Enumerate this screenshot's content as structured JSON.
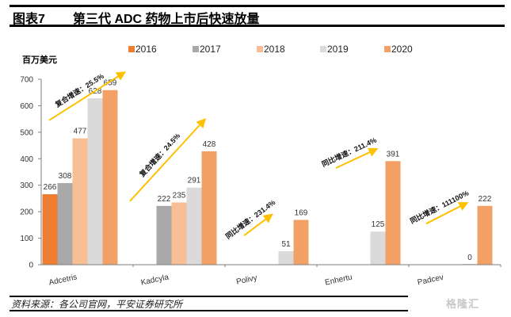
{
  "header": {
    "figure_number": "图表7",
    "title": "第三代 ADC 药物上市后快速放量"
  },
  "footer": {
    "source": "资料来源：各公司官网，平安证券研究所",
    "watermark": "格隆汇"
  },
  "chart_data": {
    "type": "bar",
    "title": "第三代 ADC 药物上市后快速放量",
    "ylabel": "百万美元",
    "xlabel": "",
    "ylim": [
      0,
      700
    ],
    "yticks": [
      "0",
      "100",
      "200",
      "300",
      "400",
      "500",
      "600",
      "700"
    ],
    "ytick_values": [
      0,
      100,
      200,
      300,
      400,
      500,
      600,
      700
    ],
    "grid": false,
    "legend_position": "top",
    "categories": [
      "Adcetris",
      "Kadcyla",
      "Polivy",
      "Enhertu",
      "Padcev"
    ],
    "series": [
      {
        "name": "2016",
        "color": "#ED7D31",
        "values": [
          266,
          null,
          null,
          null,
          null
        ]
      },
      {
        "name": "2017",
        "color": "#A9A9A9",
        "values": [
          308,
          222,
          null,
          null,
          null
        ]
      },
      {
        "name": "2018",
        "color": "#F8BF96",
        "values": [
          477,
          235,
          null,
          null,
          null
        ]
      },
      {
        "name": "2019",
        "color": "#DADADA",
        "values": [
          628,
          291,
          51,
          125,
          0
        ]
      },
      {
        "name": "2020",
        "color": "#F2A066",
        "values": [
          659,
          428,
          169,
          391,
          222
        ]
      }
    ],
    "annotations": [
      {
        "category": "Adcetris",
        "text": "复合增速：25.5%"
      },
      {
        "category": "Kadcyla",
        "text": "复合增速：24.5%"
      },
      {
        "category": "Polivy",
        "text": "同比增速：231.4%"
      },
      {
        "category": "Enhertu",
        "text": "同比增速：211.4%"
      },
      {
        "category": "Padcev",
        "text": "同比增速：111100%"
      }
    ],
    "arrow_color": "#FFC000"
  }
}
